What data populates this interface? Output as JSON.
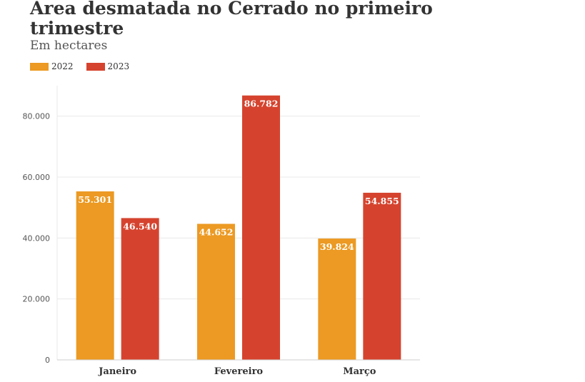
{
  "chart_data": {
    "type": "bar",
    "title": "Área desmatada no Cerrado no primeiro trimestre",
    "subtitle": "Em hectares",
    "categories": [
      "Janeiro",
      "Fevereiro",
      "Março"
    ],
    "series": [
      {
        "name": "2022",
        "color": "#ec9a23",
        "values": [
          55301,
          44652,
          39824
        ],
        "labels": [
          "55.301",
          "44.652",
          "39.824"
        ]
      },
      {
        "name": "2023",
        "color": "#d5432e",
        "values": [
          46540,
          86782,
          54855
        ],
        "labels": [
          "46.540",
          "86.782",
          "54.855"
        ]
      }
    ],
    "ylim": [
      0,
      90000
    ],
    "yticks": [
      0,
      20000,
      40000,
      60000,
      80000
    ],
    "ytick_labels": [
      "0",
      "20.000",
      "40.000",
      "60.000",
      "80.000"
    ],
    "grid": true,
    "legend_position": "top-left"
  }
}
